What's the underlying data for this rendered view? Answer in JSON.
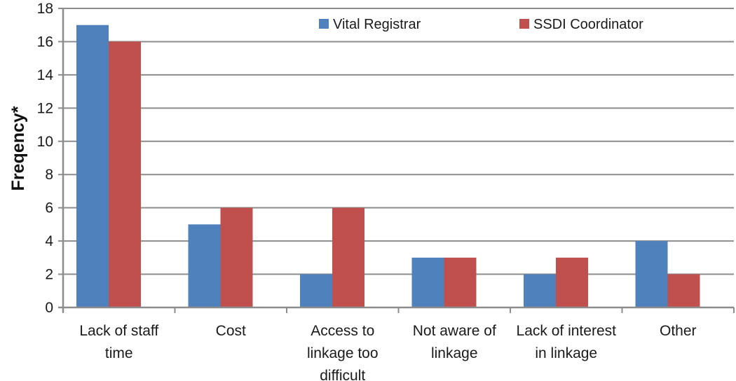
{
  "chart_data": {
    "type": "bar",
    "title": "",
    "xlabel": "",
    "ylabel": "Freqency*",
    "ylim": [
      0,
      18
    ],
    "yticks": [
      0,
      2,
      4,
      6,
      8,
      10,
      12,
      14,
      16,
      18
    ],
    "grid": true,
    "legend_position": "top-right",
    "categories": [
      [
        "Lack of staff",
        "time"
      ],
      [
        "Cost"
      ],
      [
        "Access to",
        "linkage too",
        "difficult"
      ],
      [
        "Not aware of",
        "linkage"
      ],
      [
        "Lack of interest",
        "in linkage"
      ],
      [
        "Other"
      ]
    ],
    "series": [
      {
        "name": "Vital Registrar",
        "color": "#4f81bd",
        "values": [
          17,
          5,
          2,
          3,
          2,
          4
        ]
      },
      {
        "name": "SSDI Coordinator",
        "color": "#c0504d",
        "values": [
          16,
          6,
          6,
          3,
          3,
          2
        ]
      }
    ]
  }
}
